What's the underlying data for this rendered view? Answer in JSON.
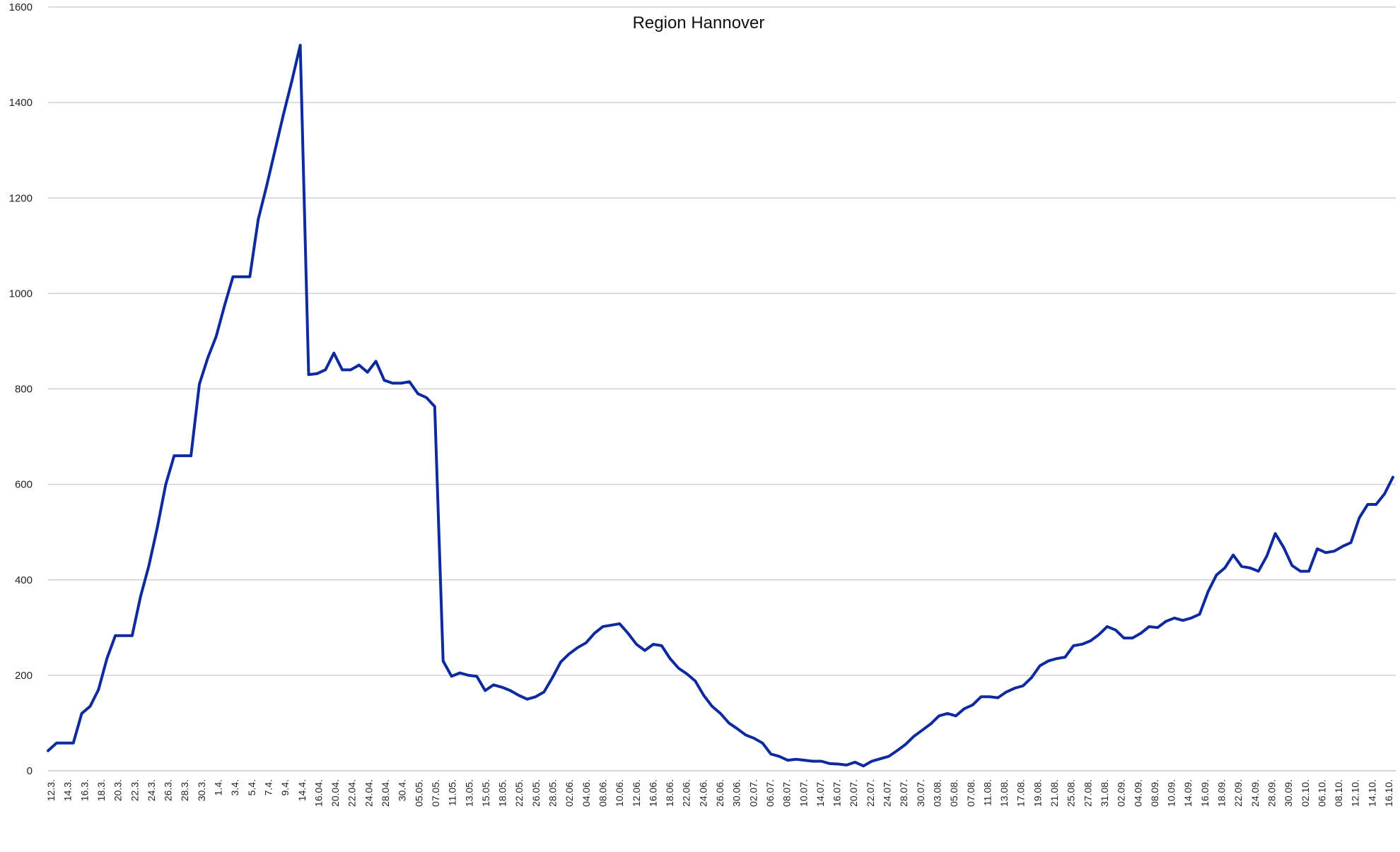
{
  "chart_data": {
    "type": "line",
    "title": "Region Hannover",
    "xlabel": "",
    "ylabel": "",
    "ylim": [
      0,
      1600
    ],
    "y_ticks": [
      0,
      200,
      400,
      600,
      800,
      1000,
      1200,
      1400,
      1600
    ],
    "grid": "horizontal",
    "legend": "none",
    "line_color": "#0d2b9e",
    "x_ticks": [
      "12.3.",
      "14.3.",
      "16.3.",
      "18.3.",
      "20.3.",
      "22.3.",
      "24.3.",
      "26.3.",
      "28.3.",
      "30.3.",
      "1.4.",
      "3.4.",
      "5.4.",
      "7.4.",
      "9.4.",
      "14.4.",
      "16.04.",
      "20.04.",
      "22.04.",
      "24.04.",
      "28.04.",
      "30.4.",
      "05.05.",
      "07.05.",
      "11.05.",
      "13.05.",
      "15.05.",
      "18.05.",
      "22.05.",
      "26.05.",
      "28.05.",
      "02.06.",
      "04.06.",
      "08.06.",
      "10.06.",
      "12.06.",
      "16.06.",
      "18.06.",
      "22.06.",
      "24.06.",
      "26.06.",
      "30.06.",
      "02.07.",
      "06.07.",
      "08.07.",
      "10.07.",
      "14.07.",
      "16.07.",
      "20.07.",
      "22.07.",
      "24.07.",
      "28.07.",
      "30.07.",
      "03.08.",
      "05.08.",
      "07.08.",
      "11.08.",
      "13.08.",
      "17.08.",
      "19.08.",
      "21.08.",
      "25.08.",
      "27.08.",
      "31.08.",
      "02.09.",
      "04.09.",
      "08.09.",
      "10.09.",
      "14.09.",
      "16.09.",
      "18.09.",
      "22.09.",
      "24.09.",
      "28.09.",
      "30.09.",
      "02.10.",
      "06.10.",
      "08.10.",
      "12.10.",
      "14.10.",
      "16.10."
    ],
    "values": [
      42,
      58,
      58,
      58,
      120,
      135,
      170,
      235,
      283,
      283,
      283,
      365,
      430,
      510,
      600,
      660,
      660,
      660,
      810,
      865,
      910,
      975,
      1035,
      1035,
      1035,
      1155,
      1225,
      1300,
      1375,
      1445,
      1520,
      830,
      832,
      840,
      875,
      840,
      840,
      850,
      835,
      858,
      818,
      812,
      812,
      815,
      790,
      782,
      763,
      230,
      198,
      205,
      200,
      198,
      168,
      180,
      175,
      168,
      158,
      150,
      155,
      165,
      195,
      228,
      245,
      258,
      268,
      288,
      302,
      305,
      308,
      288,
      265,
      252,
      265,
      262,
      235,
      215,
      203,
      188,
      158,
      135,
      120,
      100,
      88,
      75,
      68,
      58,
      35,
      30,
      22,
      24,
      22,
      20,
      20,
      15,
      14,
      12,
      18,
      10,
      20,
      25,
      30,
      42,
      55,
      72,
      85,
      98,
      115,
      120,
      115,
      130,
      138,
      155,
      155,
      153,
      165,
      173,
      178,
      195,
      220,
      230,
      235,
      238,
      262,
      265,
      272,
      285,
      302,
      295,
      278,
      278,
      288,
      302,
      300,
      313,
      320,
      315,
      320,
      328,
      375,
      410,
      425,
      452,
      428,
      425,
      418,
      450,
      497,
      468,
      430,
      418,
      418,
      465,
      457,
      460,
      470,
      478,
      530,
      558,
      558,
      580,
      615
    ]
  }
}
